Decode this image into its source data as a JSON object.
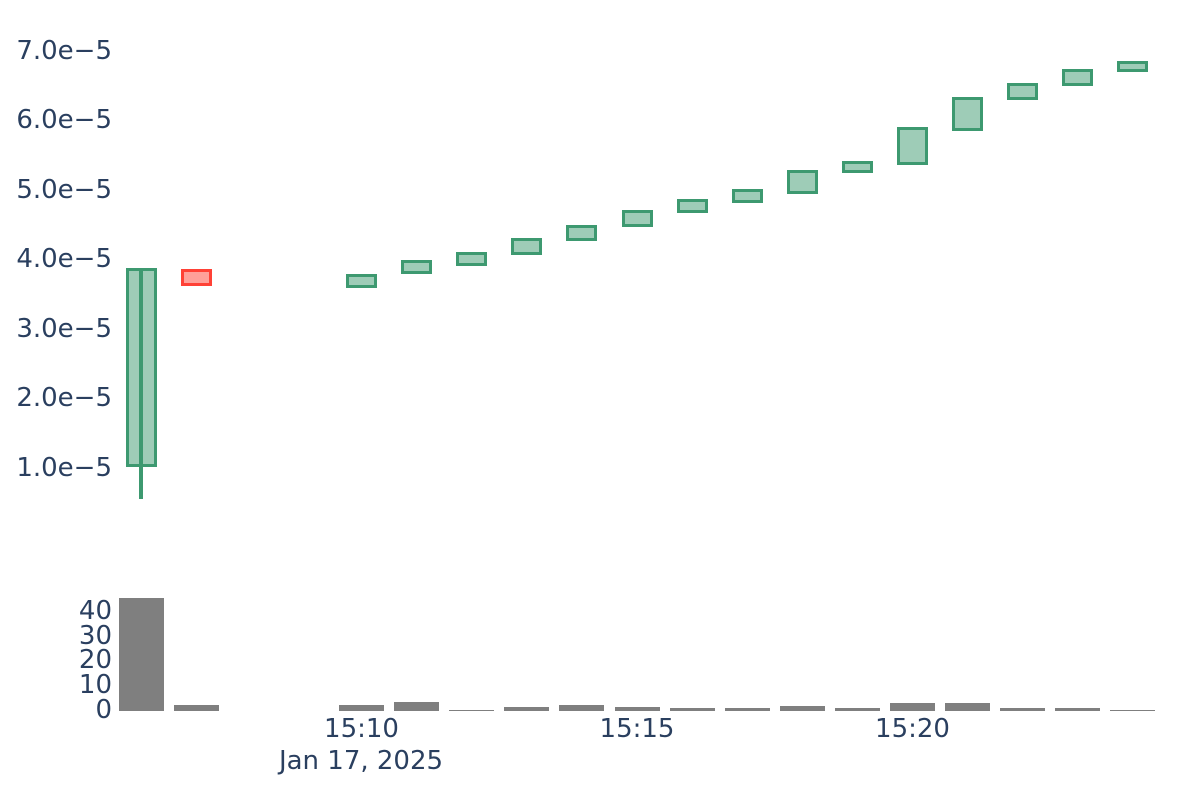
{
  "chart_data": {
    "type": "candlestick",
    "subtype": "price-with-volume-subplot",
    "title": "",
    "x_axis": {
      "ticks": [
        "15:10",
        "15:15",
        "15:20"
      ],
      "date_label": "Jan 17, 2025"
    },
    "price_axis": {
      "ticks": [
        {
          "label": "7.0e−5",
          "value": 7e-05
        },
        {
          "label": "6.0e−5",
          "value": 6e-05
        },
        {
          "label": "5.0e−5",
          "value": 5e-05
        },
        {
          "label": "4.0e−5",
          "value": 4e-05
        },
        {
          "label": "3.0e−5",
          "value": 3e-05
        },
        {
          "label": "2.0e−5",
          "value": 2e-05
        },
        {
          "label": "1.0e−5",
          "value": 1e-05
        }
      ],
      "range": [
        0,
        7.5e-05
      ],
      "grid": false
    },
    "volume_axis": {
      "ticks": [
        {
          "label": "40",
          "value": 40
        },
        {
          "label": "30",
          "value": 30
        },
        {
          "label": "20",
          "value": 20
        },
        {
          "label": "10",
          "value": 10
        },
        {
          "label": "0",
          "value": 0
        }
      ],
      "range": [
        0,
        48
      ],
      "grid": false
    },
    "candles": [
      {
        "time": "15:06",
        "open": 1.02e-05,
        "high": 3.87e-05,
        "low": 5.5e-06,
        "close": 3.87e-05,
        "volume": 46,
        "direction": "up"
      },
      {
        "time": "15:07",
        "open": 3.86e-05,
        "high": 3.86e-05,
        "low": 3.61e-05,
        "close": 3.61e-05,
        "volume": 2.3,
        "direction": "down"
      },
      {
        "time": "15:10",
        "open": 3.59e-05,
        "high": 3.79e-05,
        "low": 3.59e-05,
        "close": 3.79e-05,
        "volume": 2.4,
        "direction": "up"
      },
      {
        "time": "15:11",
        "open": 3.79e-05,
        "high": 3.99e-05,
        "low": 3.79e-05,
        "close": 3.99e-05,
        "volume": 3.7,
        "direction": "up"
      },
      {
        "time": "15:12",
        "open": 3.91e-05,
        "high": 4.1e-05,
        "low": 3.91e-05,
        "close": 4.1e-05,
        "volume": 0.6,
        "direction": "up"
      },
      {
        "time": "15:13",
        "open": 4.06e-05,
        "high": 4.3e-05,
        "low": 4.06e-05,
        "close": 4.3e-05,
        "volume": 1.6,
        "direction": "up"
      },
      {
        "time": "15:14",
        "open": 4.27e-05,
        "high": 4.5e-05,
        "low": 4.27e-05,
        "close": 4.5e-05,
        "volume": 2.4,
        "direction": "up"
      },
      {
        "time": "15:15",
        "open": 4.47e-05,
        "high": 4.71e-05,
        "low": 4.47e-05,
        "close": 4.71e-05,
        "volume": 1.6,
        "direction": "up"
      },
      {
        "time": "15:16",
        "open": 4.66e-05,
        "high": 4.87e-05,
        "low": 4.66e-05,
        "close": 4.87e-05,
        "volume": 1.1,
        "direction": "up"
      },
      {
        "time": "15:17",
        "open": 4.81e-05,
        "high": 5.01e-05,
        "low": 4.81e-05,
        "close": 5.01e-05,
        "volume": 1.1,
        "direction": "up"
      },
      {
        "time": "15:18",
        "open": 4.94e-05,
        "high": 5.29e-05,
        "low": 4.94e-05,
        "close": 5.29e-05,
        "volume": 2.0,
        "direction": "up"
      },
      {
        "time": "15:19",
        "open": 5.24e-05,
        "high": 5.41e-05,
        "low": 5.24e-05,
        "close": 5.41e-05,
        "volume": 1.3,
        "direction": "up"
      },
      {
        "time": "15:20",
        "open": 5.36e-05,
        "high": 5.9e-05,
        "low": 5.36e-05,
        "close": 5.9e-05,
        "volume": 3.1,
        "direction": "up"
      },
      {
        "time": "15:21",
        "open": 5.85e-05,
        "high": 6.33e-05,
        "low": 5.85e-05,
        "close": 6.33e-05,
        "volume": 3.1,
        "direction": "up"
      },
      {
        "time": "15:22",
        "open": 6.29e-05,
        "high": 6.54e-05,
        "low": 6.29e-05,
        "close": 6.54e-05,
        "volume": 1.3,
        "direction": "up"
      },
      {
        "time": "15:23",
        "open": 6.49e-05,
        "high": 6.74e-05,
        "low": 6.49e-05,
        "close": 6.74e-05,
        "volume": 1.3,
        "direction": "up"
      },
      {
        "time": "15:24",
        "open": 6.7e-05,
        "high": 6.85e-05,
        "low": 6.7e-05,
        "close": 6.85e-05,
        "volume": 0.4,
        "direction": "up"
      }
    ],
    "colors": {
      "increasing_line": "#3D9970",
      "increasing_fill": "rgba(61,153,112,0.5)",
      "decreasing_line": "#FF4136",
      "decreasing_fill": "rgba(255,65,54,0.5)",
      "volume_bar": "#7F7F7F",
      "text": "#2a3f5f",
      "background": "#FFFFFF"
    }
  }
}
